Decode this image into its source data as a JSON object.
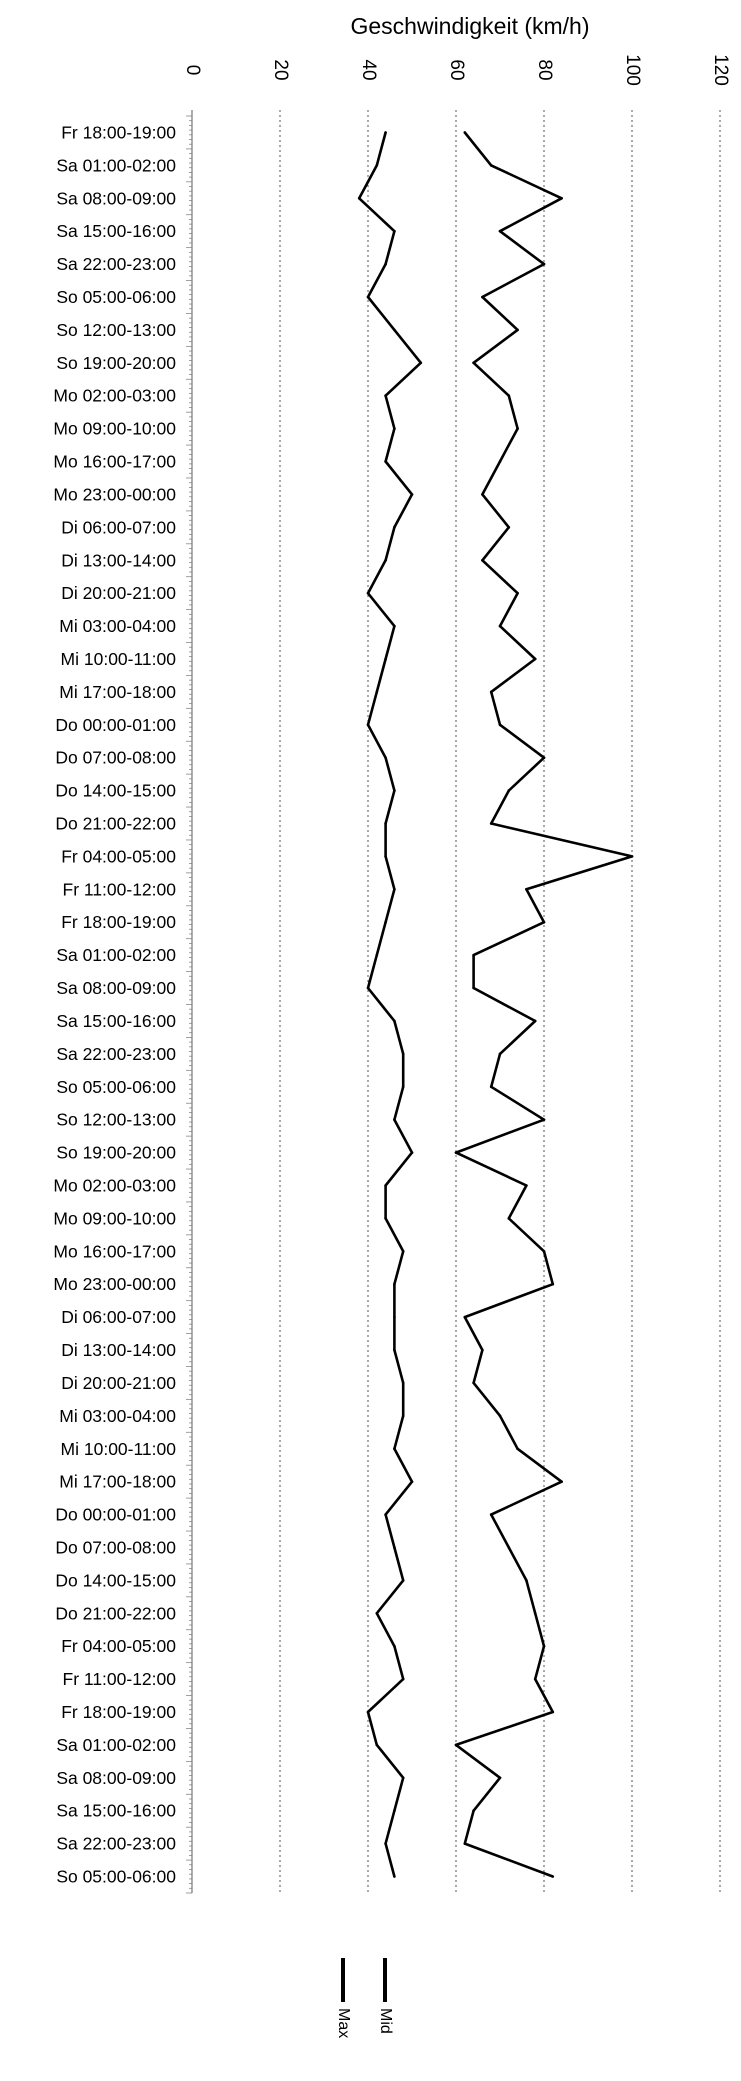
{
  "chart_data": {
    "type": "line",
    "title": "Geschwindigkeit (km/h)",
    "value_axis": {
      "range": [
        0,
        120
      ],
      "ticks": [
        "0",
        "20",
        "40",
        "60",
        "80",
        "100",
        "120"
      ],
      "gridlines": true,
      "tick_labels_rotated": true
    },
    "category_axis": {
      "labels": [
        "Fr 18:00-19:00",
        "Sa 01:00-02:00",
        "Sa 08:00-09:00",
        "Sa 15:00-16:00",
        "Sa 22:00-23:00",
        "So 05:00-06:00",
        "So 12:00-13:00",
        "So 19:00-20:00",
        "Mo 02:00-03:00",
        "Mo 09:00-10:00",
        "Mo 16:00-17:00",
        "Mo 23:00-00:00",
        "Di 06:00-07:00",
        "Di 13:00-14:00",
        "Di 20:00-21:00",
        "Mi 03:00-04:00",
        "Mi 10:00-11:00",
        "Mi 17:00-18:00",
        "Do 00:00-01:00",
        "Do 07:00-08:00",
        "Do 14:00-15:00",
        "Do 21:00-22:00",
        "Fr 04:00-05:00",
        "Fr 11:00-12:00",
        "Fr 18:00-19:00",
        "Sa 01:00-02:00",
        "Sa 08:00-09:00",
        "Sa 15:00-16:00",
        "Sa 22:00-23:00",
        "So 05:00-06:00",
        "So 12:00-13:00",
        "So 19:00-20:00",
        "Mo 02:00-03:00",
        "Mo 09:00-10:00",
        "Mo 16:00-17:00",
        "Mo 23:00-00:00",
        "Di 06:00-07:00",
        "Di 13:00-14:00",
        "Di 20:00-21:00",
        "Mi 03:00-04:00",
        "Mi 10:00-11:00",
        "Mi 17:00-18:00",
        "Do 00:00-01:00",
        "Do 07:00-08:00",
        "Do 14:00-15:00",
        "Do 21:00-22:00",
        "Fr 04:00-05:00",
        "Fr 11:00-12:00",
        "Fr 18:00-19:00",
        "Sa 01:00-02:00",
        "Sa 08:00-09:00",
        "Sa 15:00-16:00",
        "Sa 22:00-23:00",
        "So 05:00-06:00"
      ]
    },
    "legend": {
      "placement": "bottom",
      "entries": [
        "Max",
        "Mid"
      ]
    },
    "series": [
      {
        "name": "Max",
        "values": [
          62,
          68,
          84,
          70,
          80,
          66,
          74,
          64,
          72,
          74,
          70,
          66,
          72,
          66,
          74,
          70,
          78,
          68,
          70,
          80,
          72,
          68,
          100,
          76,
          80,
          64,
          64,
          78,
          70,
          68,
          80,
          60,
          76,
          72,
          80,
          82,
          62,
          66,
          64,
          70,
          74,
          84,
          68,
          72,
          76,
          78,
          80,
          78,
          82,
          60,
          70,
          64,
          62,
          82
        ]
      },
      {
        "name": "Mid",
        "values": [
          44,
          42,
          38,
          46,
          44,
          40,
          46,
          52,
          44,
          46,
          44,
          50,
          46,
          44,
          40,
          46,
          44,
          42,
          40,
          44,
          46,
          44,
          44,
          46,
          44,
          42,
          40,
          46,
          48,
          48,
          46,
          50,
          44,
          44,
          48,
          46,
          46,
          46,
          48,
          48,
          46,
          50,
          44,
          46,
          48,
          42,
          46,
          48,
          40,
          42,
          48,
          46,
          44,
          46
        ]
      }
    ]
  }
}
